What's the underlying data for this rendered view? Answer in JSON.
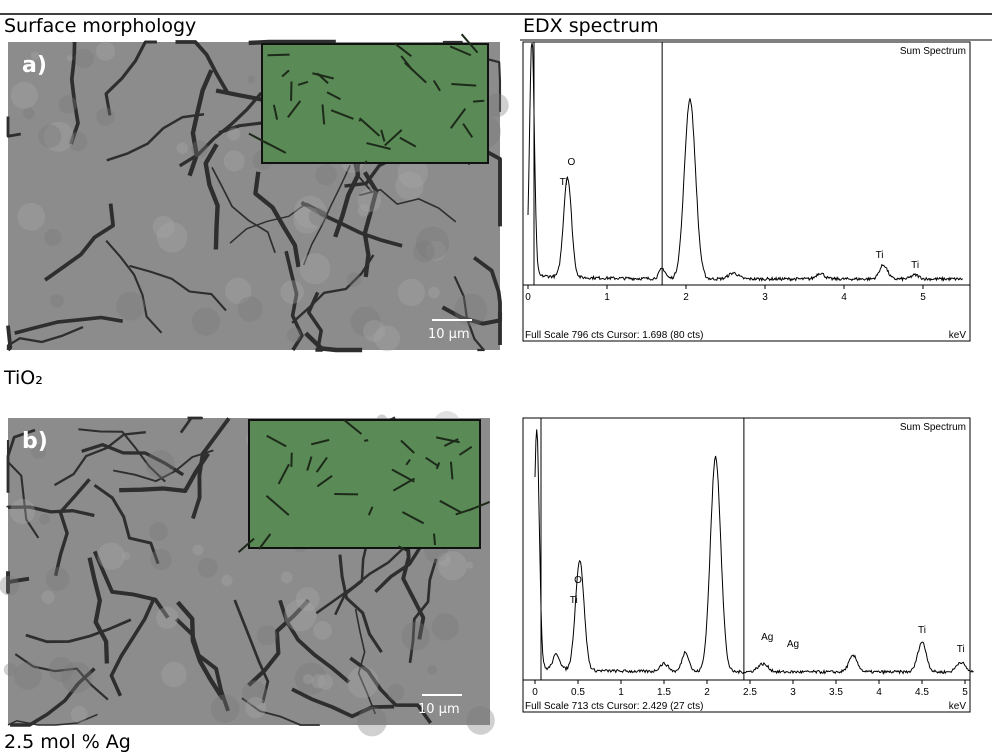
{
  "header": {
    "col1": "Surface morphology",
    "col2": "EDX spectrum"
  },
  "rows": [
    {
      "sem": {
        "label": "a)",
        "scale": "10 µm"
      },
      "edx": {
        "title": "Sum Spectrum",
        "xticks": [
          "0",
          "1",
          "2",
          "3",
          "4",
          "5"
        ],
        "peaks": [
          "O",
          "Ti",
          "Ti",
          "Ti"
        ],
        "footer": "Full Scale 796 cts Cursor: 1.698 (80 cts)",
        "unit": "keV"
      },
      "caption": "TiO₂"
    },
    {
      "sem": {
        "label": "b)",
        "scale": "10 µm"
      },
      "edx": {
        "title": "Sum Spectrum",
        "xticks": [
          "0",
          "0.5",
          "1",
          "1.5",
          "2",
          "2.5",
          "3",
          "3.5",
          "4",
          "4.5",
          "5"
        ],
        "peaks": [
          "O",
          "Ti",
          "Ag",
          "Ag",
          "Ti",
          "Ti"
        ],
        "footer": "Full Scale 713 cts Cursor: 2.429 (27 cts)",
        "unit": "keV"
      },
      "caption": "2.5 mol % Ag"
    }
  ]
}
